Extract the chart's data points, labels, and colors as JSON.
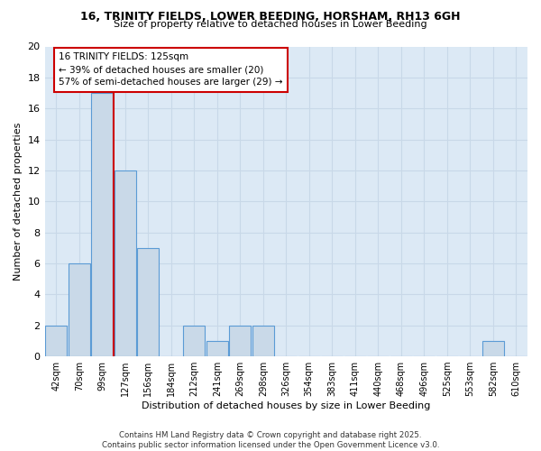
{
  "title1": "16, TRINITY FIELDS, LOWER BEEDING, HORSHAM, RH13 6GH",
  "title2": "Size of property relative to detached houses in Lower Beeding",
  "xlabel": "Distribution of detached houses by size in Lower Beeding",
  "ylabel": "Number of detached properties",
  "categories": [
    "42sqm",
    "70sqm",
    "99sqm",
    "127sqm",
    "156sqm",
    "184sqm",
    "212sqm",
    "241sqm",
    "269sqm",
    "298sqm",
    "326sqm",
    "354sqm",
    "383sqm",
    "411sqm",
    "440sqm",
    "468sqm",
    "496sqm",
    "525sqm",
    "553sqm",
    "582sqm",
    "610sqm"
  ],
  "values": [
    2,
    6,
    17,
    12,
    7,
    0,
    2,
    1,
    2,
    2,
    0,
    0,
    0,
    0,
    0,
    0,
    0,
    0,
    0,
    1,
    0
  ],
  "bar_color": "#c9d9e8",
  "bar_edge_color": "#5b9bd5",
  "annotation_text": "16 TRINITY FIELDS: 125sqm\n← 39% of detached houses are smaller (20)\n57% of semi-detached houses are larger (29) →",
  "annotation_box_color": "#ffffff",
  "annotation_box_edge_color": "#cc0000",
  "subject_line_color": "#cc0000",
  "grid_color": "#c8d8e8",
  "background_color": "#dce9f5",
  "footer_text": "Contains HM Land Registry data © Crown copyright and database right 2025.\nContains public sector information licensed under the Open Government Licence v3.0.",
  "ylim": [
    0,
    20
  ],
  "yticks": [
    0,
    2,
    4,
    6,
    8,
    10,
    12,
    14,
    16,
    18,
    20
  ]
}
